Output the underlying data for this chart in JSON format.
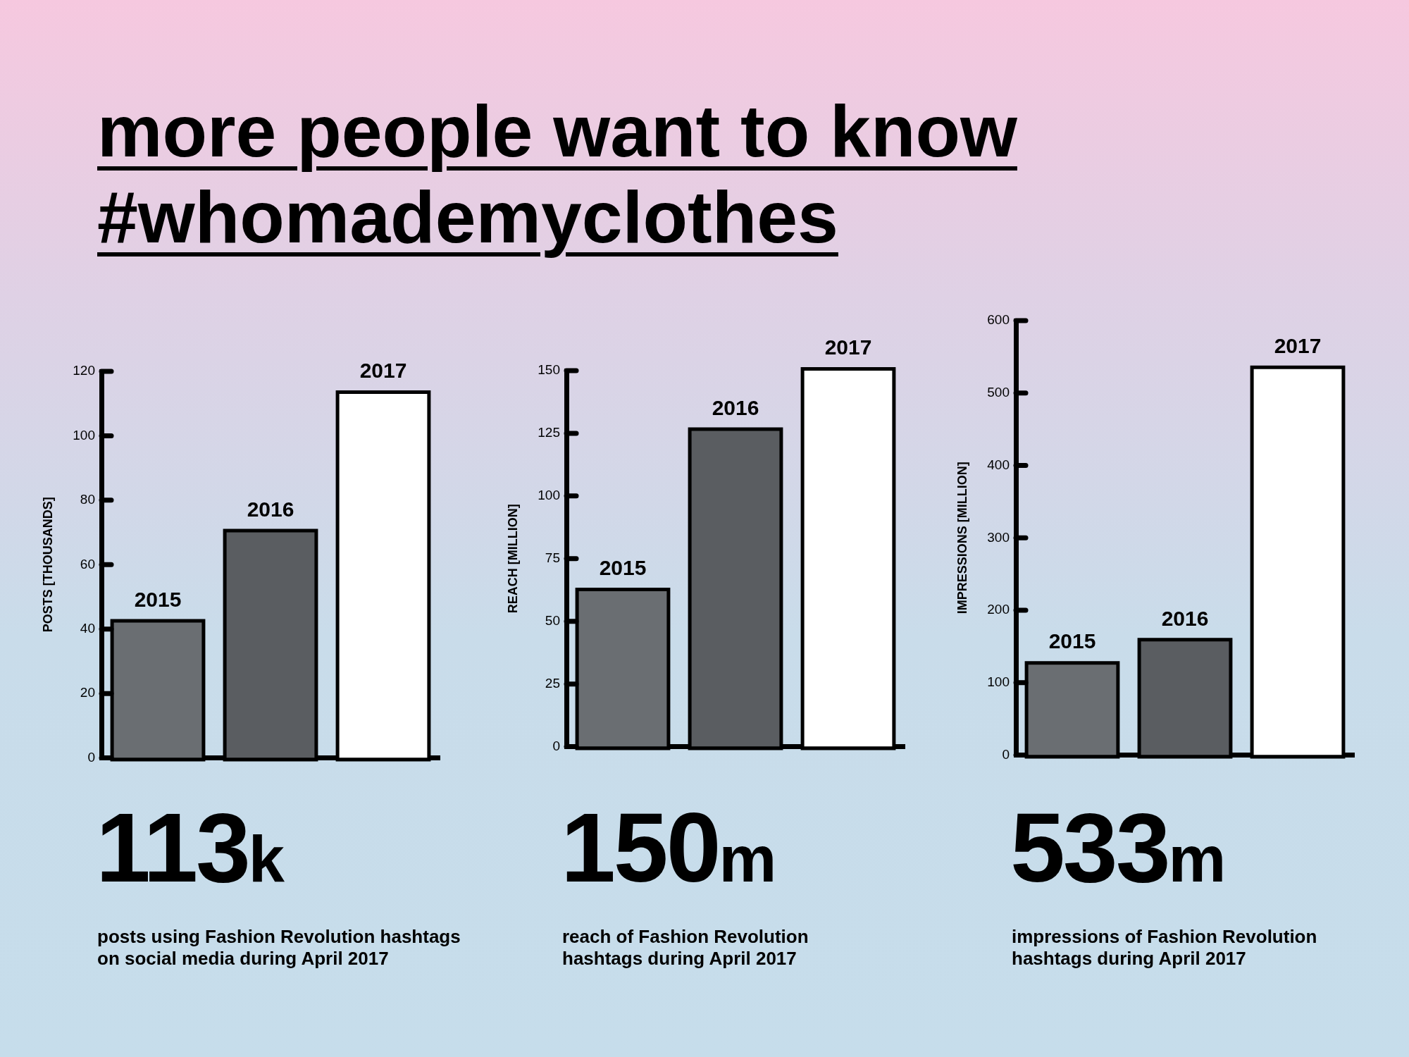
{
  "chart_data": [
    {
      "type": "other",
      "title": "more people want to know #whomademyclothes"
    },
    {
      "type": "bar",
      "categories": [
        "2015",
        "2016",
        "2017"
      ],
      "values": [
        42,
        70,
        113
      ],
      "colors": [
        "#6a6e72",
        "#5a5d61",
        "#ffffff"
      ],
      "ylabel": "POSTS [THOUSANDS]",
      "ylim": [
        0,
        120
      ],
      "yticks": [
        0,
        20,
        40,
        60,
        80,
        100,
        120
      ],
      "tick_labels": "y",
      "annotations": [
        "113k",
        "posts using Fashion Revolution hashtags\non social media during April 2017"
      ]
    },
    {
      "type": "bar",
      "categories": [
        "2015",
        "2016",
        "2017"
      ],
      "values": [
        62,
        126,
        150
      ],
      "colors": [
        "#6a6e72",
        "#5a5d61",
        "#ffffff"
      ],
      "ylabel": "REACH [MILLION]",
      "ylim": [
        0,
        150
      ],
      "yticks": [
        0,
        25,
        50,
        75,
        100,
        125,
        150
      ],
      "tick_labels": "y",
      "annotations": [
        "150m",
        "reach of Fashion Revolution\nhashtags during April 2017"
      ]
    },
    {
      "type": "bar",
      "categories": [
        "2015",
        "2016",
        "2017"
      ],
      "values": [
        125,
        157,
        533
      ],
      "colors": [
        "#6a6e72",
        "#5a5d61",
        "#ffffff"
      ],
      "ylabel": "IMPRESSIONS [MILLION]",
      "ylim": [
        0,
        600
      ],
      "yticks": [
        0,
        100,
        200,
        300,
        400,
        500,
        600
      ],
      "tick_labels": "y",
      "annotations": [
        "533m",
        "impressions of Fashion Revolution\nhashtags during April 2017"
      ]
    }
  ]
}
